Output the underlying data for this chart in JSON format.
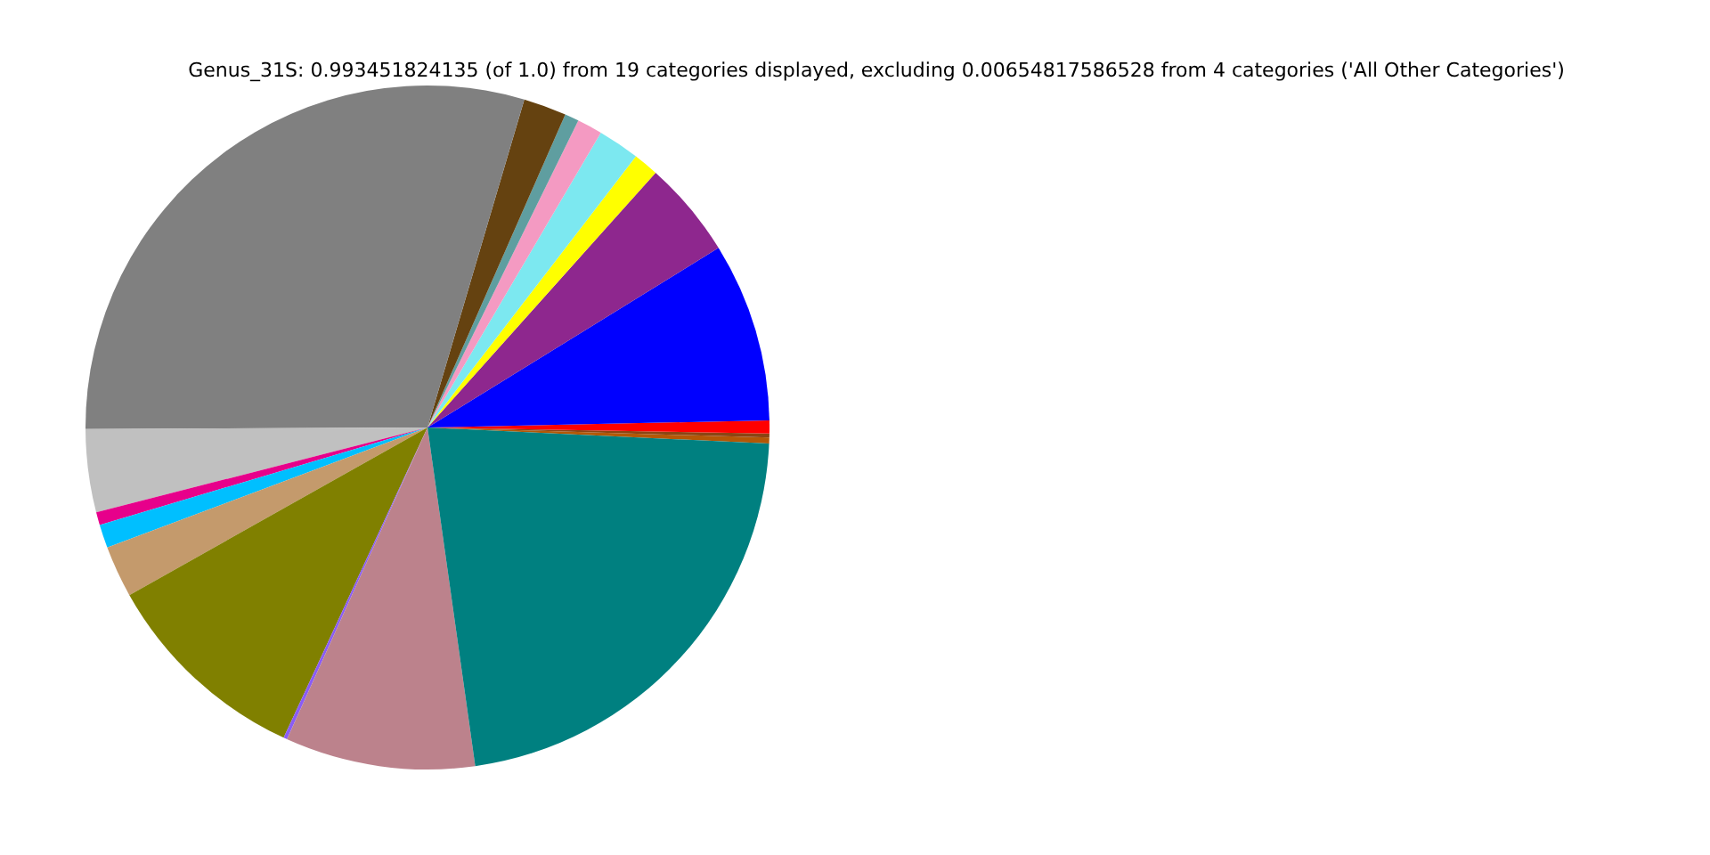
{
  "chart_data": {
    "type": "pie",
    "title": "Genus_31S: 0.993451824135 (of 1.0) from 19 categories displayed, excluding 0.00654817586528 from 4 categories ('All Other Categories')",
    "categories": [
      null,
      null,
      null,
      null,
      null,
      null,
      null,
      null,
      null,
      null,
      null,
      null,
      null,
      null,
      null,
      null,
      null,
      null,
      null
    ],
    "values": [
      0.28,
      0.19,
      0.61,
      8.47,
      4.58,
      1.19,
      1.97,
      1.19,
      0.67,
      2.03,
      29.64,
      3.92,
      0.61,
      1.11,
      2.44,
      9.94,
      0.17,
      8.97,
      22.02
    ],
    "colors": [
      "#b35806",
      "#8b4513",
      "#ff0000",
      "#0000ff",
      "#8e278e",
      "#ffff00",
      "#7ce8f0",
      "#f49ac2",
      "#5f9ea0",
      "#654210",
      "#808080",
      "#c0c0c0",
      "#e7008b",
      "#00bfff",
      "#c49a6c",
      "#808000",
      "#8a5cf5",
      "#bc828c",
      "#008080"
    ]
  }
}
